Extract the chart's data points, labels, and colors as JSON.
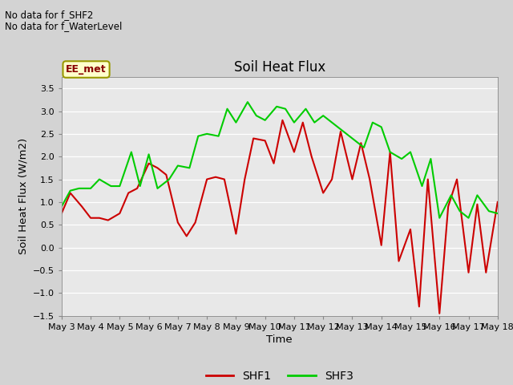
{
  "title": "Soil Heat Flux",
  "xlabel": "Time",
  "ylabel": "Soil Heat Flux (W/m2)",
  "ylim": [
    -1.5,
    3.75
  ],
  "yticks": [
    -1.5,
    -1.0,
    -0.5,
    0.0,
    0.5,
    1.0,
    1.5,
    2.0,
    2.5,
    3.0,
    3.5
  ],
  "plot_bg_color": "#e8e8e8",
  "fig_bg_color": "#d3d3d3",
  "line1_color": "#cc0000",
  "line2_color": "#00cc00",
  "annotation_text1": "No data for f_SHF2",
  "annotation_text2": "No data for f_WaterLevel",
  "box_label": "EE_met",
  "box_facecolor": "#ffffcc",
  "box_edgecolor": "#999900",
  "legend_labels": [
    "SHF1",
    "SHF3"
  ],
  "xtick_labels": [
    "May 3",
    "May 4",
    "May 5",
    "May 6",
    "May 7",
    "May 8",
    "May 9",
    "May 10",
    "May 11",
    "May 12",
    "May 13",
    "May 14",
    "May 15",
    "May 16",
    "May 17",
    "May 18"
  ],
  "shf1_x": [
    0,
    0.3,
    0.5,
    0.7,
    1.0,
    1.3,
    1.6,
    2.0,
    2.3,
    2.6,
    3.0,
    3.3,
    3.6,
    4.0,
    4.3,
    4.6,
    5.0,
    5.3,
    5.6,
    6.0,
    6.3,
    6.6,
    7.0,
    7.3,
    7.6,
    8.0,
    8.3,
    8.6,
    9.0,
    9.3,
    9.6,
    10.0,
    10.3,
    10.6,
    11.0,
    11.3,
    11.6,
    12.0,
    12.3,
    12.6,
    13.0,
    13.3,
    13.6,
    14.0,
    14.3,
    14.6,
    15.0
  ],
  "shf1_y": [
    0.75,
    1.2,
    1.05,
    0.9,
    0.65,
    0.65,
    0.6,
    0.75,
    1.2,
    1.3,
    1.85,
    1.75,
    1.6,
    0.55,
    0.25,
    0.55,
    1.5,
    1.55,
    1.5,
    0.3,
    1.5,
    2.4,
    2.35,
    1.85,
    2.8,
    2.1,
    2.75,
    2.0,
    1.2,
    1.5,
    2.55,
    1.5,
    2.3,
    1.5,
    0.05,
    2.1,
    -0.3,
    0.4,
    -1.3,
    1.5,
    -1.45,
    0.9,
    1.5,
    -0.55,
    0.95,
    -0.55,
    1.0
  ],
  "shf3_x": [
    0,
    0.3,
    0.6,
    1.0,
    1.3,
    1.7,
    2.0,
    2.4,
    2.7,
    3.0,
    3.3,
    3.7,
    4.0,
    4.4,
    4.7,
    5.0,
    5.4,
    5.7,
    6.0,
    6.4,
    6.7,
    7.0,
    7.4,
    7.7,
    8.0,
    8.4,
    8.7,
    9.0,
    9.3,
    9.7,
    10.0,
    10.4,
    10.7,
    11.0,
    11.3,
    11.7,
    12.0,
    12.4,
    12.7,
    13.0,
    13.4,
    13.7,
    14.0,
    14.3,
    14.7,
    15.0
  ],
  "shf3_y": [
    0.9,
    1.25,
    1.3,
    1.3,
    1.5,
    1.35,
    1.35,
    2.1,
    1.35,
    2.05,
    1.3,
    1.5,
    1.8,
    1.75,
    2.45,
    2.5,
    2.45,
    3.05,
    2.75,
    3.2,
    2.9,
    2.8,
    3.1,
    3.05,
    2.75,
    3.05,
    2.75,
    2.9,
    2.75,
    2.55,
    2.4,
    2.2,
    2.75,
    2.65,
    2.1,
    1.95,
    2.1,
    1.35,
    1.95,
    0.65,
    1.15,
    0.8,
    0.65,
    1.15,
    0.8,
    0.75
  ]
}
